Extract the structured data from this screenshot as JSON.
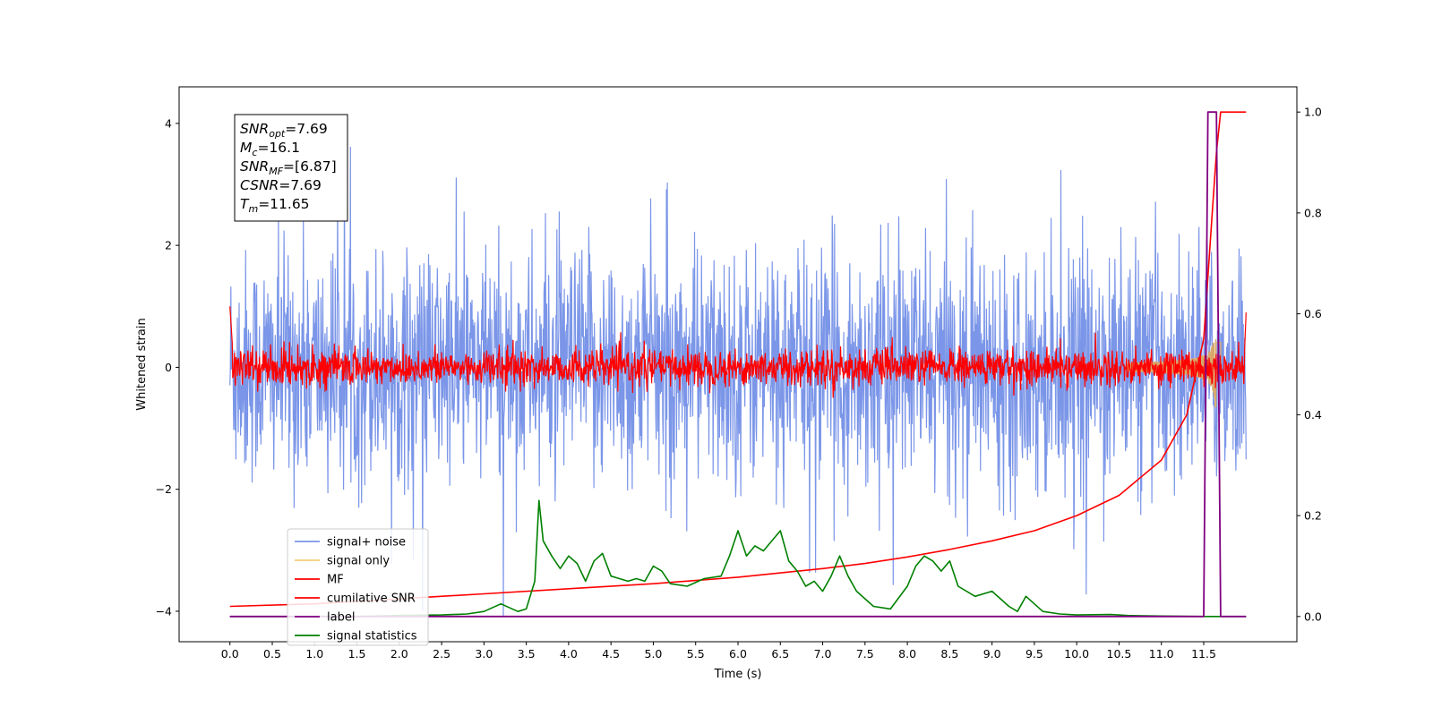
{
  "chart_data": {
    "type": "line",
    "title": "",
    "xlabel": "Time (s)",
    "ylabel": "Whitened strain",
    "y2label": "",
    "xlim": [
      -0.6,
      12.6
    ],
    "ylim": [
      -4.5,
      4.6
    ],
    "y2lim": [
      -0.05,
      1.05
    ],
    "grid": false,
    "legend_position": "lower-left",
    "x_ticks": [
      0.0,
      0.5,
      1.0,
      1.5,
      2.0,
      2.5,
      3.0,
      3.5,
      4.0,
      4.5,
      5.0,
      5.5,
      6.0,
      6.5,
      7.0,
      7.5,
      8.0,
      8.5,
      9.0,
      9.5,
      10.0,
      10.5,
      11.0,
      11.5
    ],
    "x_tick_labels": [
      "0.0",
      "0.5",
      "1.0",
      "1.5",
      "2.0",
      "2.5",
      "3.0",
      "3.5",
      "4.0",
      "4.5",
      "5.0",
      "5.5",
      "6.0",
      "6.5",
      "7.0",
      "7.5",
      "8.0",
      "8.5",
      "9.0",
      "9.5",
      "10.0",
      "10.5",
      "11.0",
      "11.5"
    ],
    "y_ticks": [
      -4,
      -2,
      0,
      2,
      4
    ],
    "y_tick_labels": [
      "−4",
      "−2",
      "0",
      "2",
      "4"
    ],
    "y2_ticks": [
      0.0,
      0.2,
      0.4,
      0.6,
      0.8,
      1.0
    ],
    "y2_tick_labels": [
      "0.0",
      "0.2",
      "0.4",
      "0.6",
      "0.8",
      "1.0"
    ],
    "annotation": [
      {
        "base": "SNR",
        "sub": "opt",
        "value": "=7.69"
      },
      {
        "base": "M",
        "sub": "c",
        "value": "=16.1"
      },
      {
        "base": "SNR",
        "sub": "MF",
        "value": "=[6.87]"
      },
      {
        "base": "CSNR",
        "sub": "",
        "value": "=7.69"
      },
      {
        "base": "T",
        "sub": "m",
        "value": "=11.65"
      }
    ],
    "series": [
      {
        "name": "signal+ noise",
        "color": "#7b96e8",
        "axis": "left",
        "description": "whitened noisy strain, roughly ±2.5 with spikes to ±4.2"
      },
      {
        "name": "signal only",
        "color": "#f5cc7a",
        "axis": "left",
        "description": "chirp growing near merger at t≈11.65 s"
      },
      {
        "name": "MF",
        "color": "#ff0000",
        "axis": "left",
        "description": "matched-filter output, noise ±0.4"
      },
      {
        "name": "cumilative SNR",
        "color": "#ff0000",
        "axis": "right",
        "points": [
          [
            0.0,
            0.02
          ],
          [
            1,
            0.025
          ],
          [
            2,
            0.035
          ],
          [
            3,
            0.045
          ],
          [
            4,
            0.055
          ],
          [
            5,
            0.065
          ],
          [
            6,
            0.078
          ],
          [
            7,
            0.095
          ],
          [
            7.5,
            0.105
          ],
          [
            8,
            0.118
          ],
          [
            8.5,
            0.133
          ],
          [
            9,
            0.15
          ],
          [
            9.5,
            0.17
          ],
          [
            10,
            0.2
          ],
          [
            10.5,
            0.24
          ],
          [
            11,
            0.31
          ],
          [
            11.3,
            0.4
          ],
          [
            11.5,
            0.55
          ],
          [
            11.6,
            0.8
          ],
          [
            11.65,
            0.92
          ],
          [
            11.7,
            1.0
          ],
          [
            12.0,
            1.0
          ]
        ]
      },
      {
        "name": "label",
        "color": "#800080",
        "axis": "right",
        "points": [
          [
            0.0,
            0.0
          ],
          [
            11.5,
            0.0
          ],
          [
            11.55,
            1.0
          ],
          [
            11.65,
            1.0
          ],
          [
            11.7,
            0.0
          ],
          [
            12.0,
            0.0
          ]
        ]
      },
      {
        "name": "signal statistics",
        "color": "#008000",
        "axis": "right",
        "points": [
          [
            0.0,
            0.0
          ],
          [
            0.5,
            0.0
          ],
          [
            1.0,
            0.0
          ],
          [
            1.5,
            0.0
          ],
          [
            2.0,
            0.002
          ],
          [
            2.5,
            0.003
          ],
          [
            2.8,
            0.005
          ],
          [
            3.0,
            0.01
          ],
          [
            3.2,
            0.025
          ],
          [
            3.4,
            0.01
          ],
          [
            3.5,
            0.015
          ],
          [
            3.6,
            0.07
          ],
          [
            3.65,
            0.23
          ],
          [
            3.7,
            0.15
          ],
          [
            3.8,
            0.12
          ],
          [
            3.9,
            0.095
          ],
          [
            4.0,
            0.12
          ],
          [
            4.1,
            0.105
          ],
          [
            4.2,
            0.07
          ],
          [
            4.3,
            0.11
          ],
          [
            4.4,
            0.125
          ],
          [
            4.5,
            0.08
          ],
          [
            4.6,
            0.075
          ],
          [
            4.7,
            0.07
          ],
          [
            4.8,
            0.075
          ],
          [
            4.9,
            0.07
          ],
          [
            5.0,
            0.1
          ],
          [
            5.1,
            0.09
          ],
          [
            5.2,
            0.065
          ],
          [
            5.4,
            0.06
          ],
          [
            5.6,
            0.075
          ],
          [
            5.8,
            0.08
          ],
          [
            5.9,
            0.12
          ],
          [
            6.0,
            0.17
          ],
          [
            6.1,
            0.12
          ],
          [
            6.2,
            0.14
          ],
          [
            6.3,
            0.13
          ],
          [
            6.5,
            0.17
          ],
          [
            6.6,
            0.11
          ],
          [
            6.7,
            0.09
          ],
          [
            6.8,
            0.06
          ],
          [
            6.9,
            0.07
          ],
          [
            7.0,
            0.05
          ],
          [
            7.1,
            0.08
          ],
          [
            7.2,
            0.12
          ],
          [
            7.3,
            0.08
          ],
          [
            7.4,
            0.05
          ],
          [
            7.6,
            0.02
          ],
          [
            7.8,
            0.015
          ],
          [
            8.0,
            0.06
          ],
          [
            8.1,
            0.1
          ],
          [
            8.2,
            0.12
          ],
          [
            8.3,
            0.11
          ],
          [
            8.4,
            0.09
          ],
          [
            8.5,
            0.11
          ],
          [
            8.6,
            0.06
          ],
          [
            8.8,
            0.04
          ],
          [
            9.0,
            0.05
          ],
          [
            9.2,
            0.02
          ],
          [
            9.3,
            0.01
          ],
          [
            9.4,
            0.04
          ],
          [
            9.6,
            0.01
          ],
          [
            9.8,
            0.005
          ],
          [
            10.0,
            0.003
          ],
          [
            10.4,
            0.004
          ],
          [
            10.6,
            0.002
          ],
          [
            11.0,
            0.001
          ],
          [
            11.5,
            0.0
          ],
          [
            12.0,
            0.0
          ]
        ]
      }
    ]
  }
}
